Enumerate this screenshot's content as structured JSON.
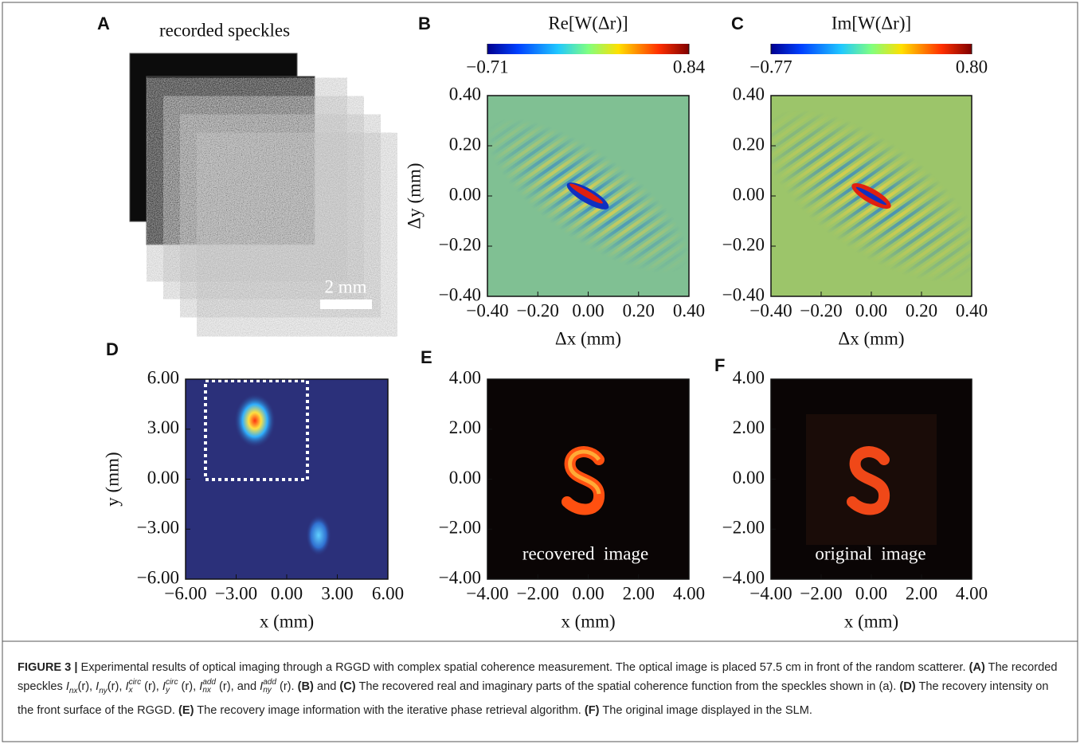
{
  "panels": {
    "A": {
      "label": "A",
      "title": "recorded speckles",
      "scale_bar": "2 mm"
    },
    "B": {
      "label": "B",
      "colorbar_title": "Re[W(Δr)]",
      "colorbar_lim": [
        -0.71,
        0.84
      ],
      "colorbar_ticks": [
        {
          "value": -0.71,
          "label": "−0.71"
        },
        {
          "value": 0.84,
          "label": "0.84"
        }
      ],
      "xlim": [
        -0.4,
        0.4
      ],
      "ylim": [
        -0.4,
        0.4
      ],
      "xticks": [
        {
          "value": -0.4,
          "label": "−0.40"
        },
        {
          "value": -0.2,
          "label": "−0.20"
        },
        {
          "value": 0,
          "label": "0.00"
        },
        {
          "value": 0.2,
          "label": "0.20"
        },
        {
          "value": 0.4,
          "label": "0.40"
        }
      ],
      "yticks": [
        {
          "value": -0.4,
          "label": "−0.40"
        },
        {
          "value": -0.2,
          "label": "−0.20"
        },
        {
          "value": 0,
          "label": "0.00"
        },
        {
          "value": 0.2,
          "label": "0.20"
        },
        {
          "value": 0.4,
          "label": "0.40"
        }
      ],
      "xlabel": "Δx (mm)",
      "ylabel": "Δy (mm)"
    },
    "C": {
      "label": "C",
      "colorbar_title": "Im[W(Δr)]",
      "colorbar_lim": [
        -0.77,
        0.8
      ],
      "colorbar_ticks": [
        {
          "value": -0.77,
          "label": "−0.77"
        },
        {
          "value": 0.8,
          "label": "0.80"
        }
      ],
      "xlim": [
        -0.4,
        0.4
      ],
      "ylim": [
        -0.4,
        0.4
      ],
      "xticks": [
        {
          "value": -0.4,
          "label": "−0.40"
        },
        {
          "value": -0.2,
          "label": "−0.20"
        },
        {
          "value": 0,
          "label": "0.00"
        },
        {
          "value": 0.2,
          "label": "0.20"
        },
        {
          "value": 0.4,
          "label": "0.40"
        }
      ],
      "yticks": [
        {
          "value": -0.4,
          "label": "−0.40"
        },
        {
          "value": -0.2,
          "label": "−0.20"
        },
        {
          "value": 0,
          "label": "0.00"
        },
        {
          "value": 0.2,
          "label": "0.20"
        },
        {
          "value": 0.4,
          "label": "0.40"
        }
      ],
      "xlabel": "Δx (mm)"
    },
    "D": {
      "label": "D",
      "xlim": [
        -6,
        6
      ],
      "ylim": [
        -6,
        6
      ],
      "xticks": [
        {
          "value": -6,
          "label": "−6.00"
        },
        {
          "value": -3,
          "label": "−3.00"
        },
        {
          "value": 0,
          "label": "0.00"
        },
        {
          "value": 3,
          "label": "3.00"
        },
        {
          "value": 6,
          "label": "6.00"
        }
      ],
      "yticks": [
        {
          "value": -6,
          "label": "−6.00"
        },
        {
          "value": -3,
          "label": "−3.00"
        },
        {
          "value": 0,
          "label": "0.00"
        },
        {
          "value": 3,
          "label": "3.00"
        },
        {
          "value": 6,
          "label": "6.00"
        }
      ],
      "xlabel": "x (mm)",
      "ylabel": "y (mm)"
    },
    "E": {
      "label": "E",
      "annotation": "recovered  image",
      "xlim": [
        -4,
        4
      ],
      "ylim": [
        -4,
        4
      ],
      "xticks": [
        {
          "value": -4,
          "label": "−4.00"
        },
        {
          "value": -2,
          "label": "−2.00"
        },
        {
          "value": 0,
          "label": "0.00"
        },
        {
          "value": 2,
          "label": "2.00"
        },
        {
          "value": 4,
          "label": "4.00"
        }
      ],
      "yticks": [
        {
          "value": -4,
          "label": "−4.00"
        },
        {
          "value": -2,
          "label": "−2.00"
        },
        {
          "value": 0,
          "label": "0.00"
        },
        {
          "value": 2,
          "label": "2.00"
        },
        {
          "value": 4,
          "label": "4.00"
        }
      ],
      "xlabel": "x (mm)"
    },
    "F": {
      "label": "F",
      "annotation": "original  image",
      "xlim": [
        -4,
        4
      ],
      "ylim": [
        -4,
        4
      ],
      "xticks": [
        {
          "value": -4,
          "label": "−4.00"
        },
        {
          "value": -2,
          "label": "−2.00"
        },
        {
          "value": 0,
          "label": "0.00"
        },
        {
          "value": 2,
          "label": "2.00"
        },
        {
          "value": 4,
          "label": "4.00"
        }
      ],
      "yticks": [
        {
          "value": -4,
          "label": "−4.00"
        },
        {
          "value": -2,
          "label": "−2.00"
        },
        {
          "value": 0,
          "label": "0.00"
        },
        {
          "value": 2,
          "label": "2.00"
        },
        {
          "value": 4,
          "label": "4.00"
        }
      ],
      "xlabel": "x (mm)"
    }
  },
  "caption": [
    "FIGURE 3 |",
    " Experimental results of optical imaging through a RGGD with complex spatial coherence measurement. The optical image is placed 57.5 cm in front of the random scatterer. ",
    "(A)",
    " The recorded speckles ",
    "I",
    "nx",
    "(r), ",
    "I",
    "ny",
    "(r), ",
    "I",
    "x",
    "circ",
    " (r), ",
    "I",
    "y",
    "circ",
    " (r), ",
    "I",
    "nx",
    "add",
    " (r), and ",
    "I",
    "ny",
    "add",
    " (r). ",
    "(B)",
    " and ",
    "(C)",
    " The recovered real and imaginary parts of the spatial coherence function from the speckles shown in (a). ",
    "(D)",
    " The recovery intensity on the front surface of the RGGD. ",
    "(E)",
    " The recovery image information with the iterative phase retrieval algorithm. ",
    "(F)",
    " The original image displayed in the SLM."
  ]
}
